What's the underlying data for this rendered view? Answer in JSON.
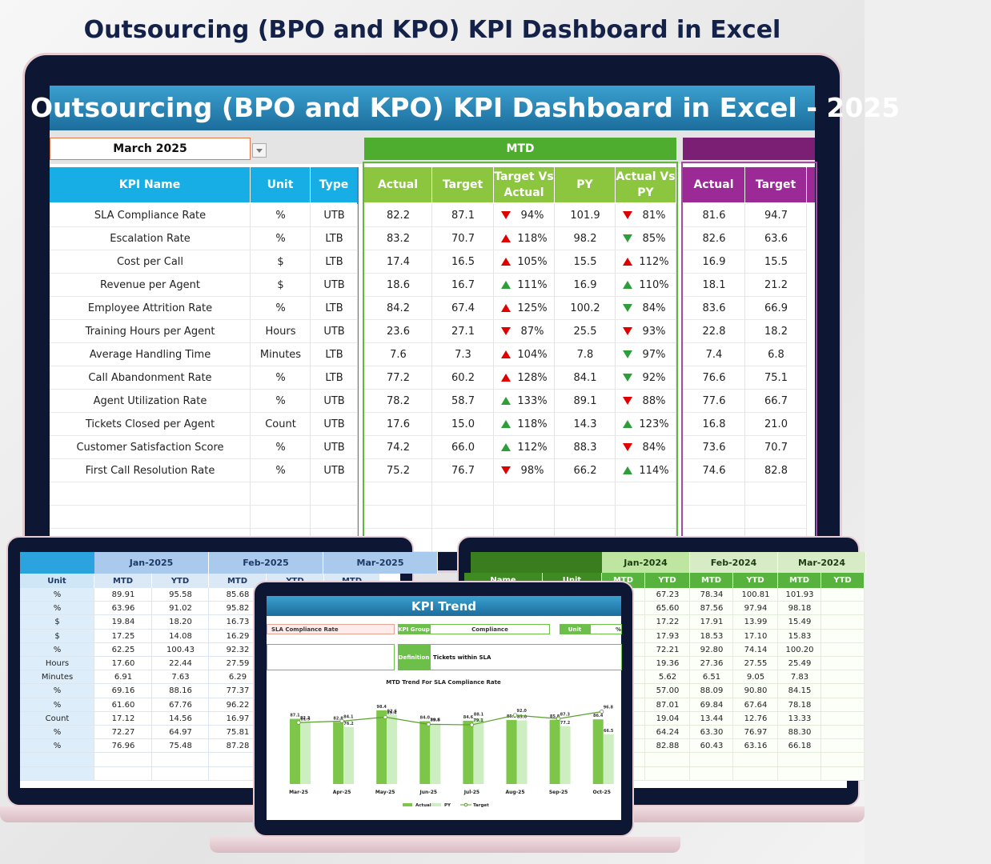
{
  "page_title": "Outsourcing (BPO and KPO) KPI Dashboard in Excel",
  "dashboard": {
    "banner": "Outsourcing (BPO and KPO) KPI Dashboard in Excel - 2025",
    "month": "March 2025",
    "mtd_header": "MTD",
    "columns": [
      "KPI Name",
      "Unit",
      "Type",
      "Actual",
      "Target",
      "Target Vs Actual",
      "PY",
      "Actual Vs PY",
      "Actual",
      "Target"
    ],
    "rows": [
      [
        "SLA Compliance Rate",
        "%",
        "UTB",
        "82.2",
        "87.1",
        "94%",
        "101.9",
        "81%",
        "81.6",
        "94.7"
      ],
      [
        "Escalation Rate",
        "%",
        "LTB",
        "83.2",
        "70.7",
        "118%",
        "98.2",
        "85%",
        "82.6",
        "63.6"
      ],
      [
        "Cost per Call",
        "$",
        "LTB",
        "17.4",
        "16.5",
        "105%",
        "15.5",
        "112%",
        "16.9",
        "15.5"
      ],
      [
        "Revenue per Agent",
        "$",
        "UTB",
        "18.6",
        "16.7",
        "111%",
        "16.9",
        "110%",
        "18.1",
        "21.2"
      ],
      [
        "Employee Attrition Rate",
        "%",
        "LTB",
        "84.2",
        "67.4",
        "125%",
        "100.2",
        "84%",
        "83.6",
        "66.9"
      ],
      [
        "Training Hours per Agent",
        "Hours",
        "UTB",
        "23.6",
        "27.1",
        "87%",
        "25.5",
        "93%",
        "22.8",
        "18.2"
      ],
      [
        "Average Handling Time",
        "Minutes",
        "LTB",
        "7.6",
        "7.3",
        "104%",
        "7.8",
        "97%",
        "7.4",
        "6.8"
      ],
      [
        "Call Abandonment Rate",
        "%",
        "LTB",
        "77.2",
        "60.2",
        "128%",
        "84.1",
        "92%",
        "76.6",
        "75.1"
      ],
      [
        "Agent Utilization Rate",
        "%",
        "UTB",
        "78.2",
        "58.7",
        "133%",
        "89.1",
        "88%",
        "77.6",
        "66.7"
      ],
      [
        "Tickets Closed per Agent",
        "Count",
        "UTB",
        "17.6",
        "15.0",
        "118%",
        "14.3",
        "123%",
        "16.8",
        "21.0"
      ],
      [
        "Customer Satisfaction Score",
        "%",
        "UTB",
        "74.2",
        "66.0",
        "112%",
        "88.3",
        "84%",
        "73.6",
        "70.7"
      ],
      [
        "First Call Resolution Rate",
        "%",
        "UTB",
        "75.2",
        "76.7",
        "98%",
        "66.2",
        "114%",
        "74.6",
        "82.8"
      ]
    ]
  },
  "left_sheet": {
    "months": [
      "Jan-2025",
      "Feb-2025",
      "Mar-2025"
    ],
    "columns": [
      "Unit",
      "MTD",
      "YTD",
      "MTD",
      "YTD",
      "MTD"
    ],
    "rows": [
      [
        "%",
        "89.91",
        "95.58",
        "85.68"
      ],
      [
        "%",
        "63.96",
        "91.02",
        "95.82"
      ],
      [
        "$",
        "19.84",
        "18.20",
        "16.73"
      ],
      [
        "$",
        "17.25",
        "14.08",
        "16.29"
      ],
      [
        "%",
        "62.25",
        "100.43",
        "92.32"
      ],
      [
        "Hours",
        "17.60",
        "22.44",
        "27.59"
      ],
      [
        "Minutes",
        "6.91",
        "7.63",
        "6.29"
      ],
      [
        "%",
        "69.16",
        "88.16",
        "77.37"
      ],
      [
        "%",
        "61.60",
        "67.76",
        "96.22"
      ],
      [
        "Count",
        "17.12",
        "14.56",
        "16.97"
      ],
      [
        "%",
        "72.27",
        "64.97",
        "75.81"
      ],
      [
        "%",
        "76.96",
        "75.48",
        "87.28"
      ]
    ]
  },
  "right_sheet": {
    "months": [
      "Jan-2024",
      "Feb-2024",
      "Mar-2024"
    ],
    "columns": [
      "Name",
      "Unit",
      "MTD",
      "YTD",
      "MTD",
      "YTD",
      "MTD",
      "YTD"
    ],
    "rows": [
      [
        "67.23",
        "78.34",
        "100.81",
        "101.93"
      ],
      [
        "65.60",
        "87.56",
        "97.94",
        "98.18"
      ],
      [
        "17.22",
        "17.91",
        "13.99",
        "15.49"
      ],
      [
        "17.93",
        "18.53",
        "17.10",
        "15.83"
      ],
      [
        "72.21",
        "92.80",
        "74.14",
        "100.20"
      ],
      [
        "19.36",
        "27.36",
        "27.55",
        "25.49"
      ],
      [
        "5.62",
        "6.51",
        "9.05",
        "7.83"
      ],
      [
        "57.00",
        "88.09",
        "90.80",
        "84.15"
      ],
      [
        "87.01",
        "69.84",
        "67.64",
        "78.18"
      ],
      [
        "19.04",
        "13.44",
        "12.76",
        "13.33"
      ],
      [
        "64.24",
        "63.30",
        "76.97",
        "88.30"
      ],
      [
        "82.88",
        "60.43",
        "63.16",
        "66.18"
      ]
    ]
  },
  "trend": {
    "title": "KPI Trend",
    "kpi": "SLA Compliance Rate",
    "group_label": "KPI Group",
    "group": "Compliance",
    "unit_label": "Unit",
    "unit": "%",
    "definition_label": "Definition",
    "definition": "Tickets within SLA",
    "chart_data": {
      "type": "bar",
      "title": "MTD Trend For SLA Compliance Rate",
      "categories": [
        "Mar-25",
        "Apr-25",
        "May-25",
        "Jun-25",
        "Jul-25",
        "Aug-25",
        "Sep-25",
        "Oct-25"
      ],
      "series": [
        {
          "name": "Actual",
          "color": "#7dc64a",
          "values": [
            87.1,
            82.8,
            98.4,
            84.0,
            84.6,
            85.5,
            85.8,
            86.4
          ],
          "value_labels": [
            "87.1",
            "82.8",
            "98.4",
            "84.0",
            "84.6",
            "85.5",
            "85.8",
            "86.4"
          ]
        },
        {
          "name": "PY",
          "color": "#cdeec0",
          "values": [
            81.9,
            76.2,
            92.6,
            80.6,
            88.1,
            85.0,
            77.2,
            66.5
          ],
          "value_labels": [
            "81.9",
            "76.2",
            "92.6",
            "80.6",
            "88.1",
            "85.0",
            "77.2",
            "66.5"
          ]
        },
        {
          "name": "Target",
          "type": "line",
          "color": "#5aa02c",
          "values": [
            82.2,
            84.1,
            89.4,
            79.8,
            79.1,
            92.0,
            87.3,
            96.8
          ],
          "value_labels": [
            "82.2",
            "84.1",
            "89.4",
            "79.8",
            "79.1",
            "92.0",
            "87.3",
            "96.8"
          ]
        }
      ]
    }
  }
}
